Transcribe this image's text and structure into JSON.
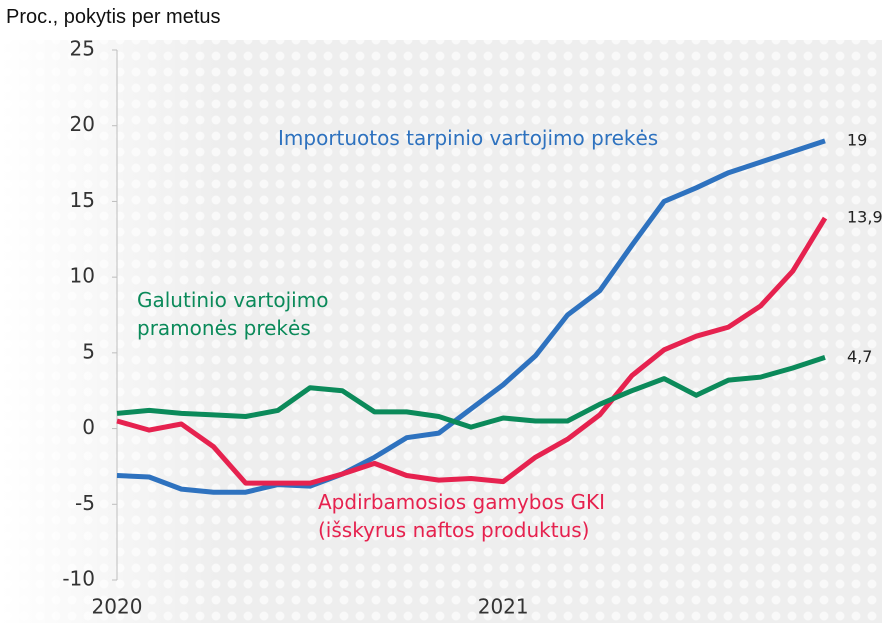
{
  "chart_data": {
    "type": "line",
    "y_axis_label": "Proc., pokytis per metus",
    "categories": [
      "2020",
      null,
      null,
      null,
      null,
      null,
      null,
      null,
      null,
      null,
      null,
      null,
      "2021",
      null,
      null,
      null,
      null,
      null,
      null,
      null,
      null,
      null,
      null
    ],
    "ylim": [
      -10,
      25
    ],
    "yticks": [
      -10,
      -5,
      0,
      5,
      10,
      15,
      20,
      25
    ],
    "series": [
      {
        "name": "Importuotos tarpinio vartojimo prekės",
        "color": "#2e72bf",
        "values": [
          -3.1,
          -3.2,
          -4.0,
          -4.2,
          -4.2,
          -3.7,
          -3.8,
          -3.0,
          -1.9,
          -0.6,
          -0.3,
          1.3,
          2.9,
          4.8,
          7.5,
          9.1,
          12.1,
          15.0,
          15.9,
          16.9,
          17.6,
          18.3,
          19
        ],
        "value_labels": [
          null,
          null,
          null,
          null,
          null,
          null,
          null,
          null,
          null,
          null,
          null,
          null,
          null,
          null,
          null,
          null,
          null,
          null,
          null,
          null,
          null,
          null,
          "19"
        ]
      },
      {
        "name": "Apdirbamosios gamybos GKI\n(išskyrus naftos produktus)",
        "color": "#e6224f",
        "values": [
          0.5,
          -0.1,
          0.3,
          -1.2,
          -3.6,
          -3.6,
          -3.6,
          -3.0,
          -2.3,
          -3.1,
          -3.4,
          -3.3,
          -3.5,
          -1.9,
          -0.7,
          0.9,
          3.5,
          5.2,
          6.1,
          6.7,
          8.1,
          10.4,
          13.9
        ],
        "value_labels": [
          null,
          null,
          null,
          null,
          null,
          null,
          null,
          null,
          null,
          null,
          null,
          null,
          null,
          null,
          null,
          null,
          null,
          null,
          null,
          null,
          null,
          null,
          "13,9"
        ]
      },
      {
        "name": "Galutinio vartojimo\npramonės prekės",
        "color": "#0b8a5a",
        "values": [
          1.0,
          1.2,
          1.0,
          0.9,
          0.8,
          1.2,
          2.7,
          2.5,
          1.1,
          1.1,
          0.8,
          0.1,
          0.7,
          0.5,
          0.5,
          1.6,
          2.5,
          3.3,
          2.2,
          3.2,
          3.4,
          4.0,
          4.7
        ],
        "value_labels": [
          null,
          null,
          null,
          null,
          null,
          null,
          null,
          null,
          null,
          null,
          null,
          null,
          null,
          null,
          null,
          null,
          null,
          null,
          null,
          null,
          null,
          null,
          "4,7"
        ]
      }
    ]
  }
}
